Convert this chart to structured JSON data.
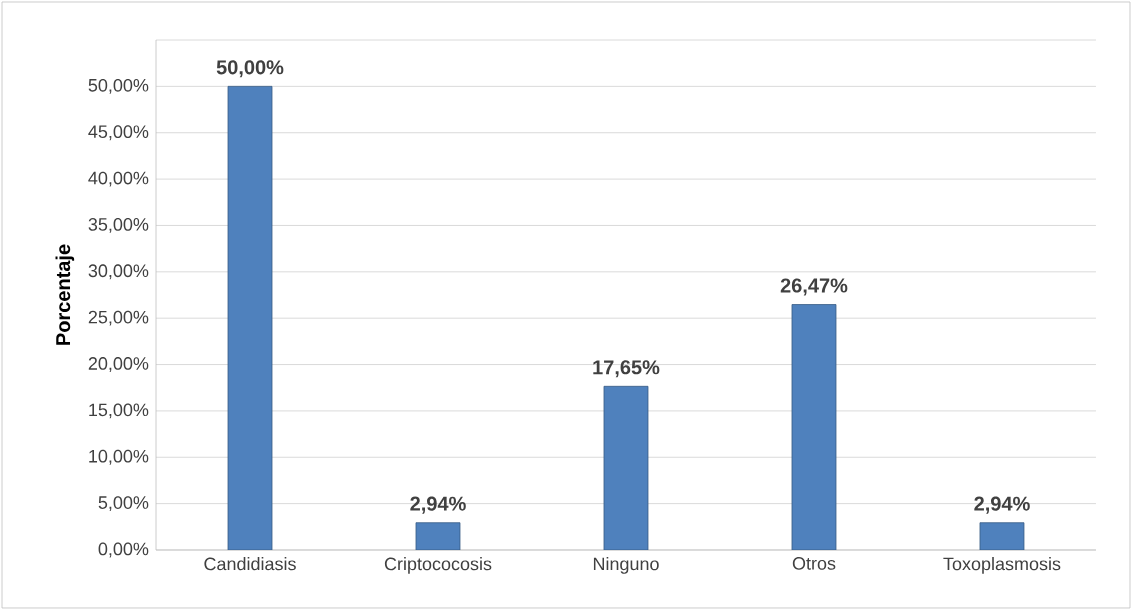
{
  "chart_data": {
    "type": "bar",
    "ylabel": "Porcentaje",
    "categories": [
      "Candidiasis",
      "Criptococosis",
      "Ninguno",
      "Otros",
      "Toxoplasmosis"
    ],
    "values": [
      50,
      2.94,
      17.65,
      26.47,
      2.94
    ],
    "value_labels": [
      "50,00%",
      "2,94%",
      "17,65%",
      "26,47%",
      "2,94%"
    ],
    "color": "#4f81bd",
    "ylim": [
      0,
      55
    ],
    "yticks": [
      {
        "value": 0,
        "label": "0,00%"
      },
      {
        "value": 5,
        "label": "5,00%"
      },
      {
        "value": 10,
        "label": "10,00%"
      },
      {
        "value": 15,
        "label": "15,00%"
      },
      {
        "value": 20,
        "label": "20,00%"
      },
      {
        "value": 25,
        "label": "25,00%"
      },
      {
        "value": 30,
        "label": "30,00%"
      },
      {
        "value": 35,
        "label": "35,00%"
      },
      {
        "value": 40,
        "label": "40,00%"
      },
      {
        "value": 45,
        "label": "45,00%"
      },
      {
        "value": 50,
        "label": "50,00%"
      },
      {
        "value": 55,
        "label": null
      }
    ],
    "grid": "y"
  }
}
